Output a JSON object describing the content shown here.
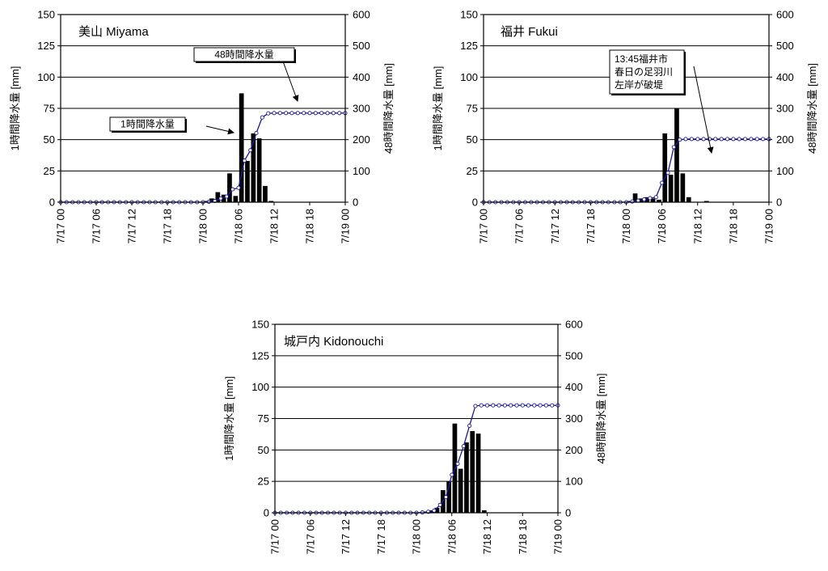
{
  "chart_data": [
    {
      "type": "bar+line",
      "title": "美山 Miyama",
      "xlabel": "",
      "ylabel": "1時間降水量 [mm]",
      "y2label": "48時間降水量 [mm]",
      "ylim": [
        0,
        150
      ],
      "y2lim": [
        0,
        600
      ],
      "yticks": [
        0,
        25,
        50,
        75,
        100,
        125,
        150
      ],
      "y2ticks": [
        0,
        100,
        200,
        300,
        400,
        500,
        600
      ],
      "xlim": [
        0,
        48
      ],
      "xticks": [
        0,
        6,
        12,
        18,
        24,
        30,
        36,
        42,
        48
      ],
      "xtick_labels": [
        "7/17 00",
        "7/17 06",
        "7/17 12",
        "7/17 18",
        "7/18 00",
        "7/18 06",
        "7/18 12",
        "7/18 18",
        "7/19 00"
      ],
      "grid": true,
      "series": [
        {
          "name": "1時間降水量",
          "kind": "bar",
          "axis": "left",
          "color": "#000000",
          "x": [
            24,
            25,
            26,
            27,
            28,
            29,
            30,
            31,
            32,
            33,
            34,
            35
          ],
          "values": [
            1,
            3,
            8,
            6,
            23,
            5,
            87,
            33,
            55,
            51,
            13,
            1
          ]
        },
        {
          "name": "48時間降水量",
          "kind": "line",
          "axis": "right",
          "color": "#1a1a9a",
          "x": [
            0,
            1,
            2,
            3,
            4,
            5,
            6,
            7,
            8,
            9,
            10,
            11,
            12,
            13,
            14,
            15,
            16,
            17,
            18,
            19,
            20,
            21,
            22,
            23,
            24,
            25,
            26,
            27,
            28,
            29,
            30,
            31,
            32,
            33,
            34,
            35,
            36,
            37,
            38,
            39,
            40,
            41,
            42,
            43,
            44,
            45,
            46,
            47,
            48
          ],
          "values": [
            0,
            0,
            0,
            0,
            0,
            0,
            0,
            0,
            0,
            0,
            0,
            0,
            0,
            0,
            0,
            0,
            0,
            0,
            0,
            0,
            0,
            0,
            0,
            0,
            0,
            1,
            4,
            12,
            18,
            41,
            46,
            133,
            166,
            221,
            271,
            284,
            285,
            285,
            285,
            285,
            285,
            285,
            285,
            285,
            285,
            285,
            285,
            285,
            285
          ]
        }
      ],
      "annotations": [
        {
          "text": "48時間降水量",
          "boxed": true
        },
        {
          "text": "1時間降水量",
          "boxed": true
        }
      ]
    },
    {
      "type": "bar+line",
      "title": "福井 Fukui",
      "xlabel": "",
      "ylabel": "1時間降水量 [mm]",
      "y2label": "48時間降水量 [mm]",
      "ylim": [
        0,
        150
      ],
      "y2lim": [
        0,
        600
      ],
      "yticks": [
        0,
        25,
        50,
        75,
        100,
        125,
        150
      ],
      "y2ticks": [
        0,
        100,
        200,
        300,
        400,
        500,
        600
      ],
      "xlim": [
        0,
        48
      ],
      "xticks": [
        0,
        6,
        12,
        18,
        24,
        30,
        36,
        42,
        48
      ],
      "xtick_labels": [
        "7/17 00",
        "7/17 06",
        "7/17 12",
        "7/17 18",
        "7/18 00",
        "7/18 06",
        "7/18 12",
        "7/18 18",
        "7/19 00"
      ],
      "grid": true,
      "series": [
        {
          "name": "1時間降水量",
          "kind": "bar",
          "axis": "left",
          "color": "#000000",
          "x": [
            24,
            25,
            26,
            27,
            28,
            29,
            30,
            31,
            32,
            33,
            34,
            35,
            36,
            37
          ],
          "values": [
            1,
            7,
            3,
            4,
            3,
            2,
            55,
            22,
            75,
            23,
            4,
            0,
            0,
            1
          ]
        },
        {
          "name": "48時間降水量",
          "kind": "line",
          "axis": "right",
          "color": "#1a1a9a",
          "x": [
            0,
            1,
            2,
            3,
            4,
            5,
            6,
            7,
            8,
            9,
            10,
            11,
            12,
            13,
            14,
            15,
            16,
            17,
            18,
            19,
            20,
            21,
            22,
            23,
            24,
            25,
            26,
            27,
            28,
            29,
            30,
            31,
            32,
            33,
            34,
            35,
            36,
            37,
            38,
            39,
            40,
            41,
            42,
            43,
            44,
            45,
            46,
            47,
            48
          ],
          "values": [
            0,
            0,
            0,
            0,
            0,
            0,
            0,
            0,
            0,
            0,
            0,
            0,
            0,
            0,
            0,
            0,
            0,
            0,
            0,
            0,
            0,
            0,
            0,
            0,
            0,
            2,
            5,
            9,
            13,
            16,
            62,
            94,
            176,
            200,
            202,
            202,
            202,
            202,
            202,
            202,
            202,
            202,
            202,
            202,
            202,
            202,
            202,
            202,
            202
          ]
        }
      ],
      "annotations": [
        {
          "text": "13:45福井市\n春日の足羽川\n左岸が破堤",
          "boxed": true
        }
      ]
    },
    {
      "type": "bar+line",
      "title": "城戸内 Kidonouchi",
      "xlabel": "",
      "ylabel": "1時間降水量 [mm]",
      "y2label": "48時間降水量 [mm]",
      "ylim": [
        0,
        150
      ],
      "y2lim": [
        0,
        600
      ],
      "yticks": [
        0,
        25,
        50,
        75,
        100,
        125,
        150
      ],
      "y2ticks": [
        0,
        100,
        200,
        300,
        400,
        500,
        600
      ],
      "xlim": [
        0,
        48
      ],
      "xticks": [
        0,
        6,
        12,
        18,
        24,
        30,
        36,
        42,
        48
      ],
      "xtick_labels": [
        "7/17 00",
        "7/17 06",
        "7/17 12",
        "7/17 18",
        "7/18 00",
        "7/18 06",
        "7/18 12",
        "7/18 18",
        "7/19 00"
      ],
      "grid": true,
      "series": [
        {
          "name": "1時間降水量",
          "kind": "bar",
          "axis": "left",
          "color": "#000000",
          "x": [
            24,
            25,
            26,
            27,
            28,
            29,
            30,
            31,
            32,
            33,
            34,
            35
          ],
          "values": [
            0,
            1,
            2,
            4,
            18,
            25,
            71,
            35,
            56,
            65,
            63,
            2
          ]
        },
        {
          "name": "48時間降水量",
          "kind": "line",
          "axis": "right",
          "color": "#1a1a9a",
          "x": [
            0,
            1,
            2,
            3,
            4,
            5,
            6,
            7,
            8,
            9,
            10,
            11,
            12,
            13,
            14,
            15,
            16,
            17,
            18,
            19,
            20,
            21,
            22,
            23,
            24,
            25,
            26,
            27,
            28,
            29,
            30,
            31,
            32,
            33,
            34,
            35,
            36,
            37,
            38,
            39,
            40,
            41,
            42,
            43,
            44,
            45,
            46,
            47,
            48
          ],
          "values": [
            0,
            0,
            0,
            0,
            0,
            0,
            0,
            0,
            0,
            0,
            0,
            0,
            0,
            0,
            0,
            0,
            0,
            0,
            0,
            0,
            0,
            0,
            0,
            0,
            0,
            1,
            3,
            7,
            25,
            50,
            121,
            156,
            212,
            277,
            340,
            342,
            342,
            342,
            342,
            342,
            342,
            342,
            342,
            342,
            342,
            342,
            342,
            342,
            342
          ]
        }
      ],
      "annotations": []
    }
  ]
}
